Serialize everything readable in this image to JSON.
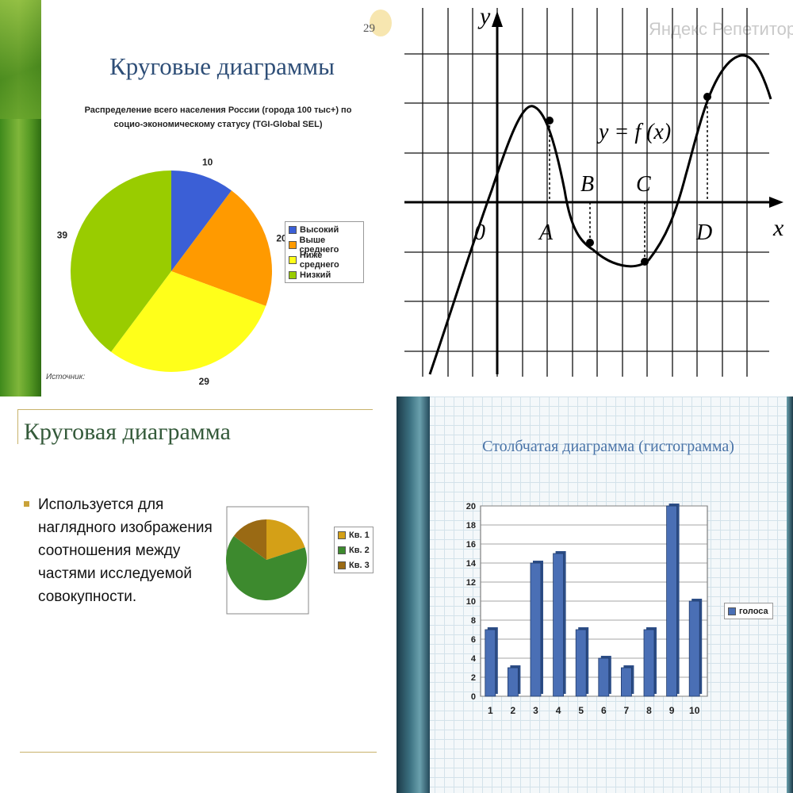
{
  "panel1": {
    "slide_number": "29",
    "title": "Круговые диаграммы",
    "subtitle_line1": "Распределение всего населения России (города 100 тыс+) по",
    "subtitle_line2": "социо-экономическому статусу (TGI-Global SEL)",
    "source": "Источник:"
  },
  "panel2": {
    "watermark": "Яндекс Репетитор",
    "y_label": "y",
    "x_label": "x",
    "origin_label": "0",
    "func_label": "y = f (x)",
    "points": {
      "A": "A",
      "B": "B",
      "C": "C",
      "D": "D"
    }
  },
  "panel3": {
    "title": "Круговая диаграмма",
    "bullet_text": "Используется для наглядного изображения соотношения между частями исследуемой совокупности."
  },
  "panel4": {
    "title": "Столбчатая диаграмма (гистограмма)"
  },
  "chart_data": [
    {
      "type": "pie",
      "title": "Распределение всего населения России (города 100 тыс+) по социо-экономическому статусу (TGI-Global SEL)",
      "series": [
        {
          "name": "Высокий",
          "value": 10,
          "color": "#3b5fd6"
        },
        {
          "name": "Выше среднего",
          "value": 20,
          "color": "#ff9a00"
        },
        {
          "name": "Ниже среднего",
          "value": 29,
          "color": "#ffff1a"
        },
        {
          "name": "Низкий",
          "value": 39,
          "color": "#99cc00"
        }
      ],
      "legend": "right"
    },
    {
      "type": "line",
      "title": "y = f (x)",
      "xlabel": "x",
      "ylabel": "y",
      "grid": true,
      "marked_points": [
        "A",
        "B",
        "C",
        "D"
      ]
    },
    {
      "type": "pie",
      "series": [
        {
          "name": "Кв. 1",
          "value": 20,
          "color": "#d4a017"
        },
        {
          "name": "Кв. 2",
          "value": 65,
          "color": "#3d8a2e"
        },
        {
          "name": "Кв. 3",
          "value": 15,
          "color": "#9a6a14"
        }
      ],
      "legend": "right"
    },
    {
      "type": "bar",
      "title": "Столбчатая диаграмма (гистограмма)",
      "categories": [
        "1",
        "2",
        "3",
        "4",
        "5",
        "6",
        "7",
        "8",
        "9",
        "10"
      ],
      "series": [
        {
          "name": "голоса",
          "values": [
            7,
            3,
            14,
            15,
            7,
            4,
            3,
            7,
            20,
            10
          ],
          "color": "#4a6fb5"
        }
      ],
      "ylim": [
        0,
        20
      ],
      "yticks": [
        "0",
        "2",
        "4",
        "6",
        "8",
        "10",
        "12",
        "14",
        "16",
        "18",
        "20"
      ],
      "legend": "right",
      "grid": true
    }
  ]
}
